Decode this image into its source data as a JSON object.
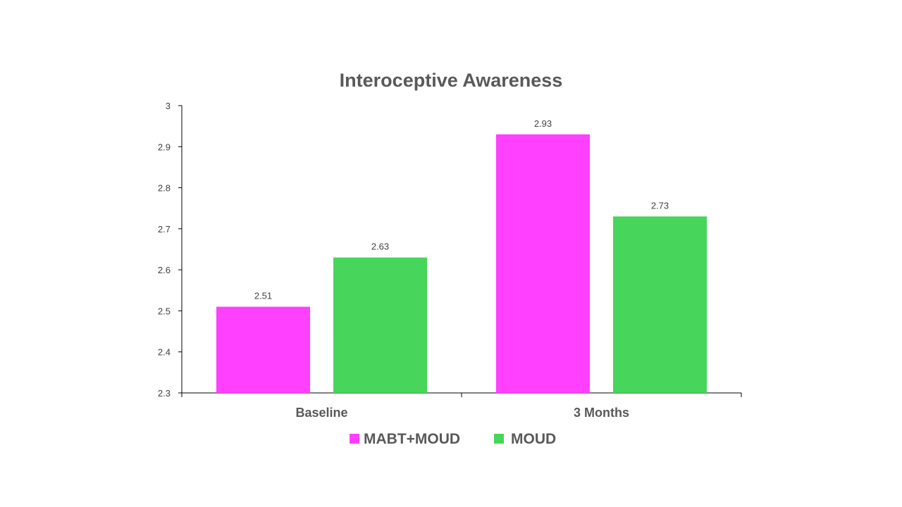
{
  "chart_data": {
    "type": "bar",
    "title": "Interoceptive Awareness",
    "categories": [
      "Baseline",
      "3 Months"
    ],
    "series": [
      {
        "name": "MABT+MOUD",
        "color": "#FF40FF",
        "values": [
          2.51,
          2.93
        ]
      },
      {
        "name": "MOUD",
        "color": "#47D65B",
        "values": [
          2.63,
          2.73
        ]
      }
    ],
    "ylim": [
      2.3,
      3
    ],
    "yticks": [
      "2.3",
      "2.4",
      "2.5",
      "2.6",
      "2.7",
      "2.8",
      "2.9",
      "3"
    ],
    "data_labels": [
      [
        "2.51",
        "2.93"
      ],
      [
        "2.63",
        "2.73"
      ]
    ],
    "xlabel": "",
    "ylabel": "",
    "grid": false,
    "legend_position": "bottom"
  }
}
